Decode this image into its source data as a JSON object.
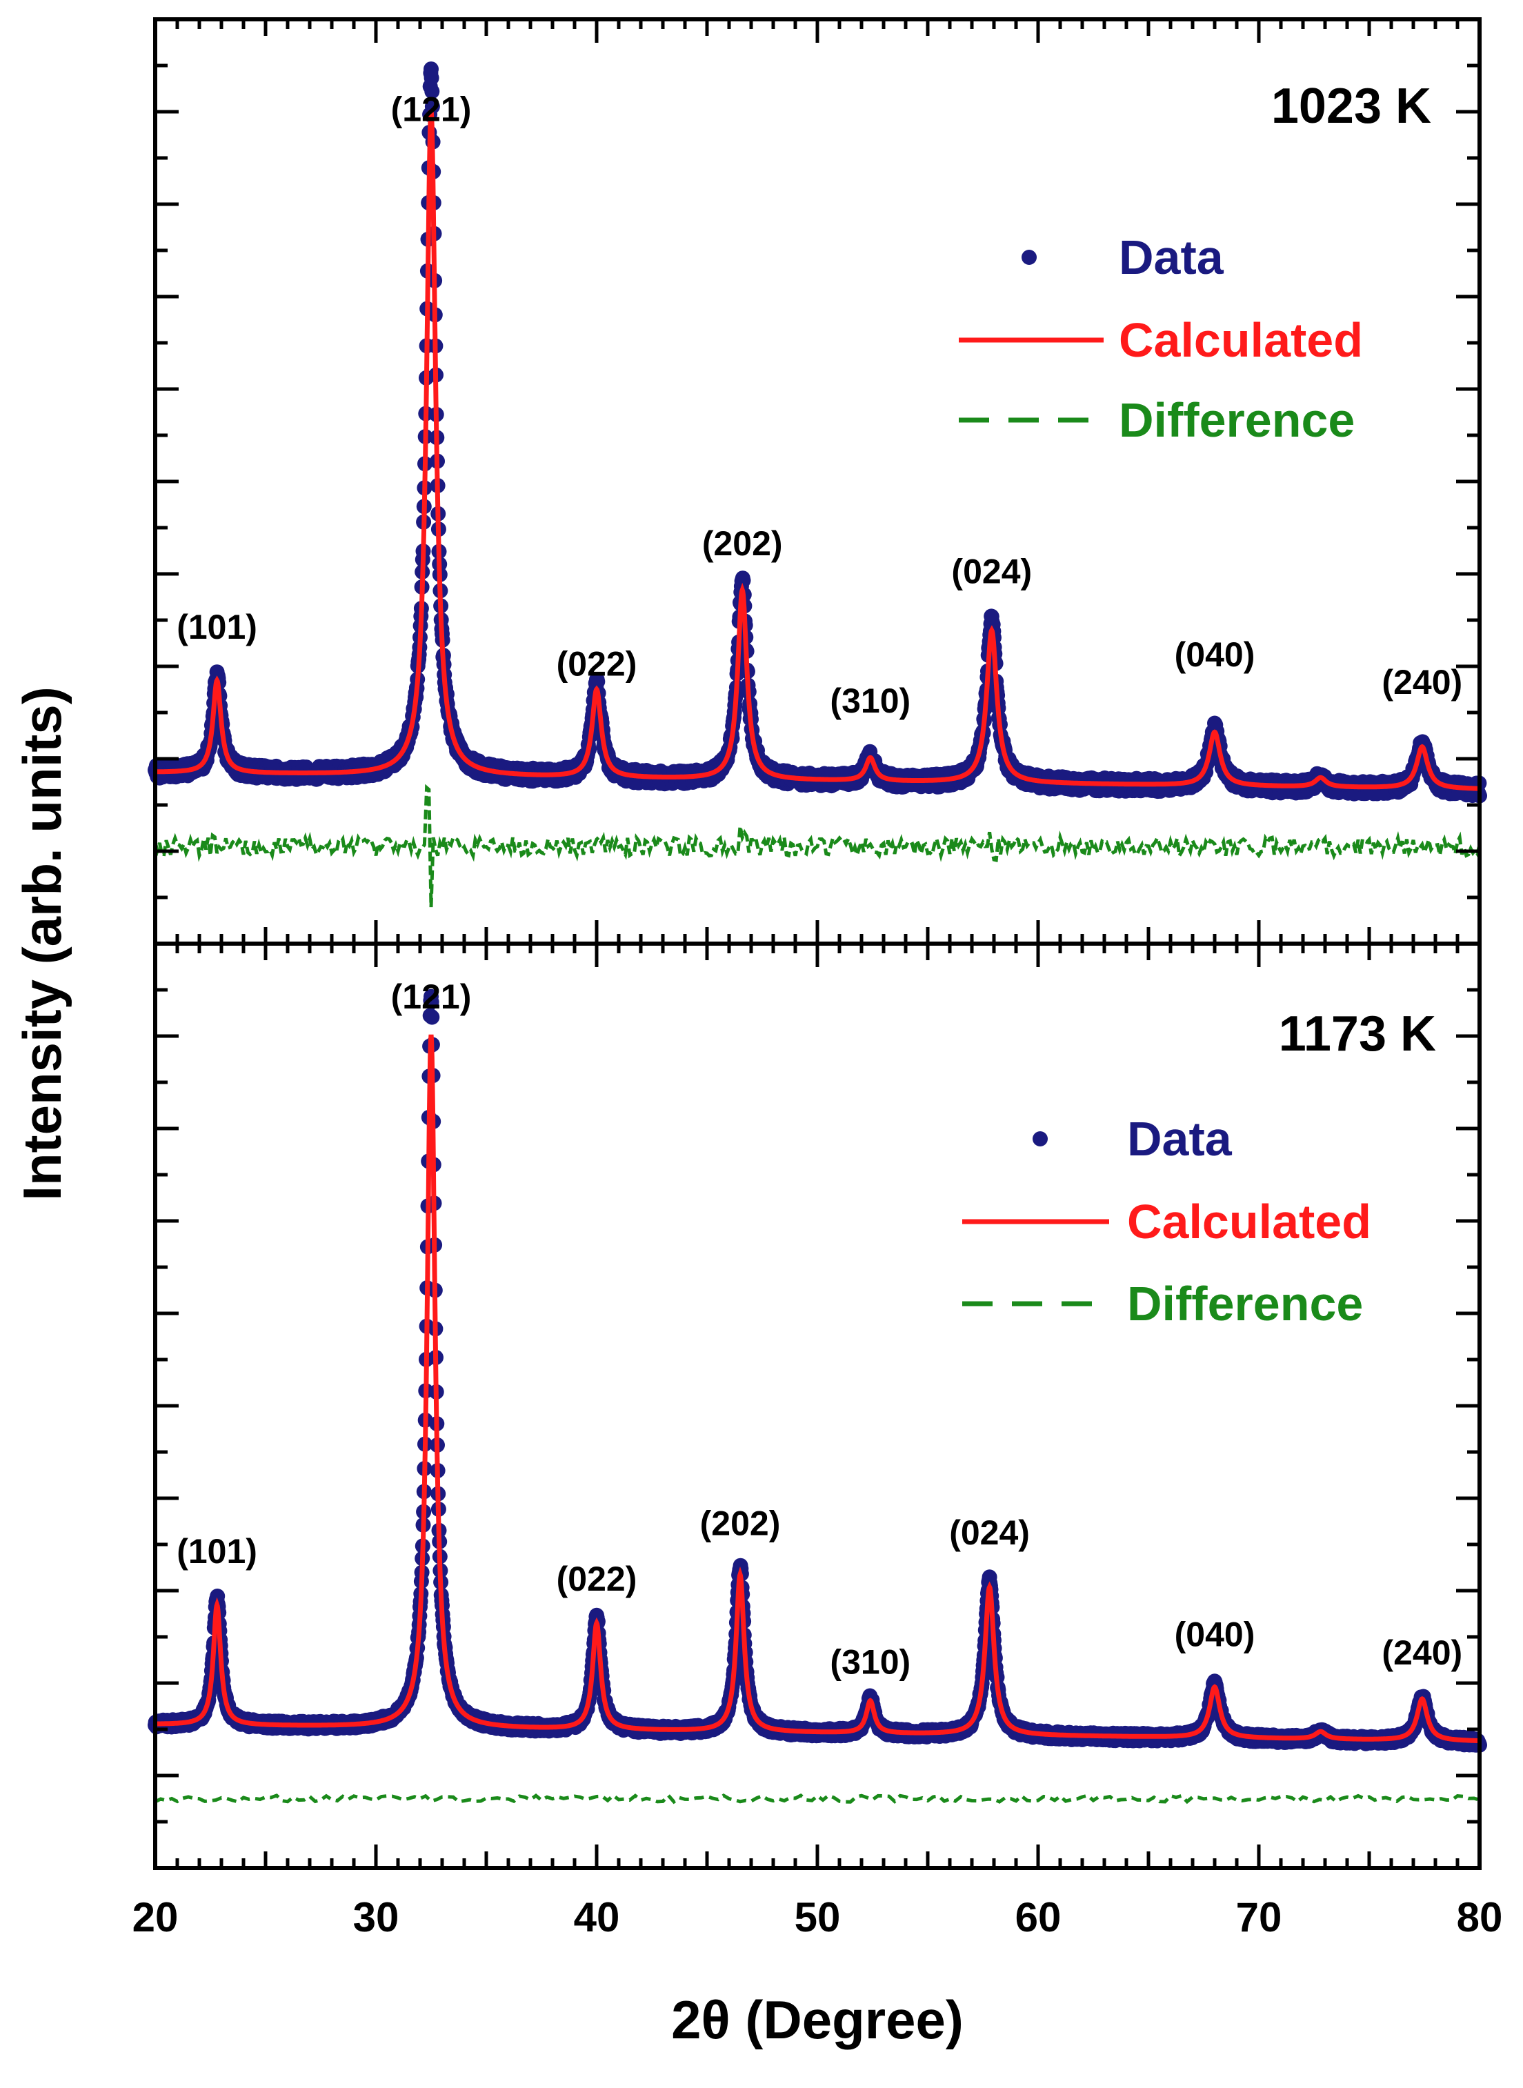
{
  "chart_data": [
    {
      "type": "scatter",
      "panel": "top",
      "title": "1023 K",
      "xlabel": "2θ (Degree)",
      "ylabel": "Intensity (arb. units)",
      "xlim": [
        20,
        80
      ],
      "ylim": [
        0,
        100
      ],
      "legend": {
        "position": "top-right",
        "entries": [
          "Data",
          "Calculated",
          "Difference"
        ]
      },
      "baseline": 18.5,
      "difference_offset": 10.5,
      "peaks": [
        {
          "label": "(101)",
          "x": 22.8,
          "height": 10,
          "width": 0.22
        },
        {
          "label": "(121)",
          "x": 32.5,
          "height": 72,
          "width": 0.25
        },
        {
          "label": "(022)",
          "x": 40.0,
          "height": 9.5,
          "width": 0.25
        },
        {
          "label": "(202)",
          "x": 46.6,
          "height": 20.5,
          "width": 0.25
        },
        {
          "label": "(310)",
          "x": 52.4,
          "height": 2.5,
          "width": 0.25
        },
        {
          "label": "(024)",
          "x": 57.9,
          "height": 16.5,
          "width": 0.28
        },
        {
          "label": "(040)",
          "x": 68.0,
          "height": 5.8,
          "width": 0.3
        },
        {
          "label": "(240)",
          "x": 77.4,
          "height": 4.5,
          "width": 0.3
        },
        {
          "label": "",
          "x": 72.8,
          "height": 1.0,
          "width": 0.3
        }
      ],
      "peak_label_y": [
        33,
        89,
        29,
        42,
        25,
        39,
        30,
        27
      ]
    },
    {
      "type": "scatter",
      "panel": "bottom",
      "title": "1173 K",
      "xlabel": "2θ (Degree)",
      "ylabel": "Intensity (arb. units)",
      "xlim": [
        20,
        80
      ],
      "ylim": [
        0,
        100
      ],
      "legend": {
        "position": "top-right",
        "entries": [
          "Data",
          "Calculated",
          "Difference"
        ]
      },
      "baseline": 15.5,
      "difference_offset": 7.5,
      "peaks": [
        {
          "label": "(101)",
          "x": 22.8,
          "height": 13,
          "width": 0.2
        },
        {
          "label": "(121)",
          "x": 32.5,
          "height": 75,
          "width": 0.22
        },
        {
          "label": "(022)",
          "x": 40.0,
          "height": 11.5,
          "width": 0.22
        },
        {
          "label": "(202)",
          "x": 46.5,
          "height": 17,
          "width": 0.22
        },
        {
          "label": "(310)",
          "x": 52.4,
          "height": 3.5,
          "width": 0.22
        },
        {
          "label": "(024)",
          "x": 57.8,
          "height": 16,
          "width": 0.25
        },
        {
          "label": "(040)",
          "x": 68.0,
          "height": 5.5,
          "width": 0.28
        },
        {
          "label": "(240)",
          "x": 77.4,
          "height": 4.5,
          "width": 0.28
        },
        {
          "label": "",
          "x": 72.8,
          "height": 0.8,
          "width": 0.3
        }
      ],
      "peak_label_y": [
        33,
        93,
        30,
        36,
        21,
        35,
        24,
        22
      ]
    }
  ],
  "xticks": [
    20,
    30,
    40,
    50,
    60,
    70,
    80
  ],
  "colors": {
    "data": "#1a1a80",
    "calculated": "#ff1a1a",
    "difference": "#1a8a1a",
    "axis": "#000000",
    "text": "#000000"
  }
}
